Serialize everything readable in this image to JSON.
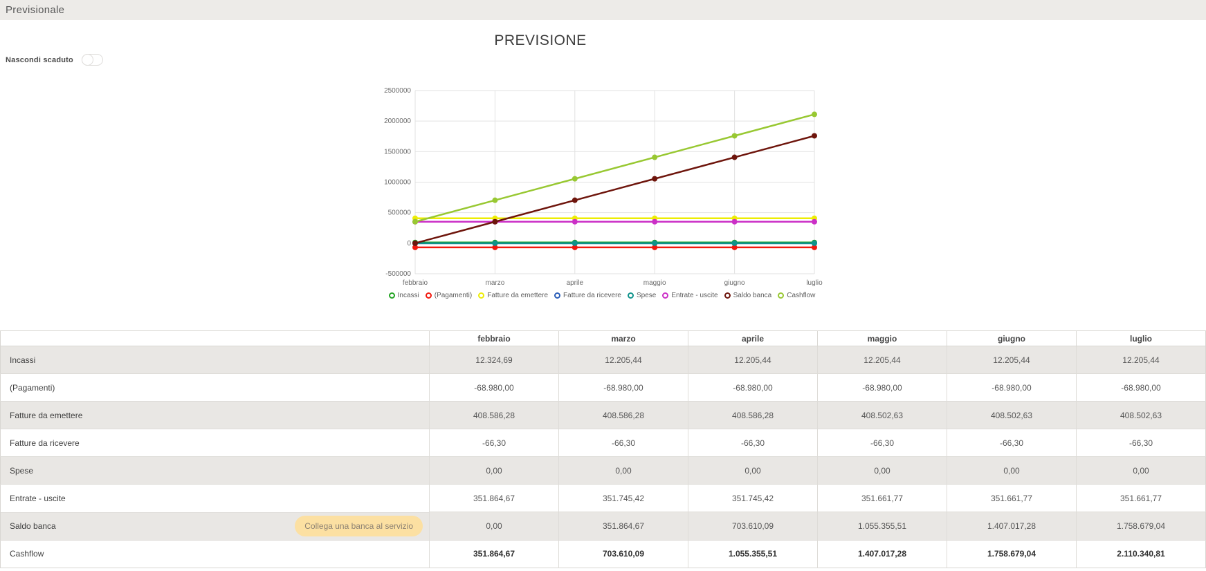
{
  "page": {
    "title_bar": "Previsionale"
  },
  "controls": {
    "hide_expired_label": "Nascondi scaduto",
    "toggle_state": "off"
  },
  "chart_data": {
    "type": "line",
    "title": "PREVISIONE",
    "categories": [
      "febbraio",
      "marzo",
      "aprile",
      "maggio",
      "giugno",
      "luglio"
    ],
    "ylim": [
      -500000,
      2500000
    ],
    "ytick_step": 500000,
    "grid": true,
    "legend_position": "bottom",
    "series": [
      {
        "name": "Incassi",
        "color": "#22a322",
        "values": [
          12324.69,
          12205.44,
          12205.44,
          12205.44,
          12205.44,
          12205.44
        ]
      },
      {
        "name": "(Pagamenti)",
        "color": "#f2180d",
        "values": [
          -68980.0,
          -68980.0,
          -68980.0,
          -68980.0,
          -68980.0,
          -68980.0
        ]
      },
      {
        "name": "Fatture da emettere",
        "color": "#eded04",
        "values": [
          408586.28,
          408586.28,
          408586.28,
          408502.63,
          408502.63,
          408502.63
        ]
      },
      {
        "name": "Fatture da ricevere",
        "color": "#2a5db8",
        "values": [
          -66.3,
          -66.3,
          -66.3,
          -66.3,
          -66.3,
          -66.3
        ]
      },
      {
        "name": "Spese",
        "color": "#0f938b",
        "values": [
          0,
          0,
          0,
          0,
          0,
          0
        ]
      },
      {
        "name": "Entrate - uscite",
        "color": "#cb2fc7",
        "values": [
          351864.67,
          351745.42,
          351745.42,
          351661.77,
          351661.77,
          351661.77
        ]
      },
      {
        "name": "Saldo banca",
        "color": "#6e150c",
        "values": [
          0,
          351864.67,
          703610.09,
          1055355.51,
          1407017.28,
          1758679.04
        ]
      },
      {
        "name": "Cashflow",
        "color": "#98c832",
        "values": [
          351864.67,
          703610.09,
          1055355.51,
          1407017.28,
          1758679.04,
          2110340.81
        ]
      }
    ]
  },
  "table": {
    "columns": [
      "febbraio",
      "marzo",
      "aprile",
      "maggio",
      "giugno",
      "luglio"
    ],
    "bank_button_label": "Collega una banca al servizio",
    "rows": [
      {
        "label": "Incassi",
        "values": [
          "12.324,69",
          "12.205,44",
          "12.205,44",
          "12.205,44",
          "12.205,44",
          "12.205,44"
        ]
      },
      {
        "label": "(Pagamenti)",
        "values": [
          "-68.980,00",
          "-68.980,00",
          "-68.980,00",
          "-68.980,00",
          "-68.980,00",
          "-68.980,00"
        ]
      },
      {
        "label": "Fatture da emettere",
        "values": [
          "408.586,28",
          "408.586,28",
          "408.586,28",
          "408.502,63",
          "408.502,63",
          "408.502,63"
        ]
      },
      {
        "label": "Fatture da ricevere",
        "values": [
          "-66,30",
          "-66,30",
          "-66,30",
          "-66,30",
          "-66,30",
          "-66,30"
        ]
      },
      {
        "label": "Spese",
        "values": [
          "0,00",
          "0,00",
          "0,00",
          "0,00",
          "0,00",
          "0,00"
        ]
      },
      {
        "label": "Entrate - uscite",
        "values": [
          "351.864,67",
          "351.745,42",
          "351.745,42",
          "351.661,77",
          "351.661,77",
          "351.661,77"
        ]
      },
      {
        "label": "Saldo banca",
        "has_button": true,
        "values": [
          "0,00",
          "351.864,67",
          "703.610,09",
          "1.055.355,51",
          "1.407.017,28",
          "1.758.679,04"
        ]
      },
      {
        "label": "Cashflow",
        "bold": true,
        "values": [
          "351.864,67",
          "703.610,09",
          "1.055.355,51",
          "1.407.017,28",
          "1.758.679,04",
          "2.110.340,81"
        ]
      }
    ]
  },
  "colors": {
    "topbar_bg": "#edebe8",
    "row_alt_bg": "#e9e7e4",
    "grid_line": "#e2e2e2",
    "bank_button_bg": "#fce0a2",
    "bank_button_text": "#8d8273"
  }
}
